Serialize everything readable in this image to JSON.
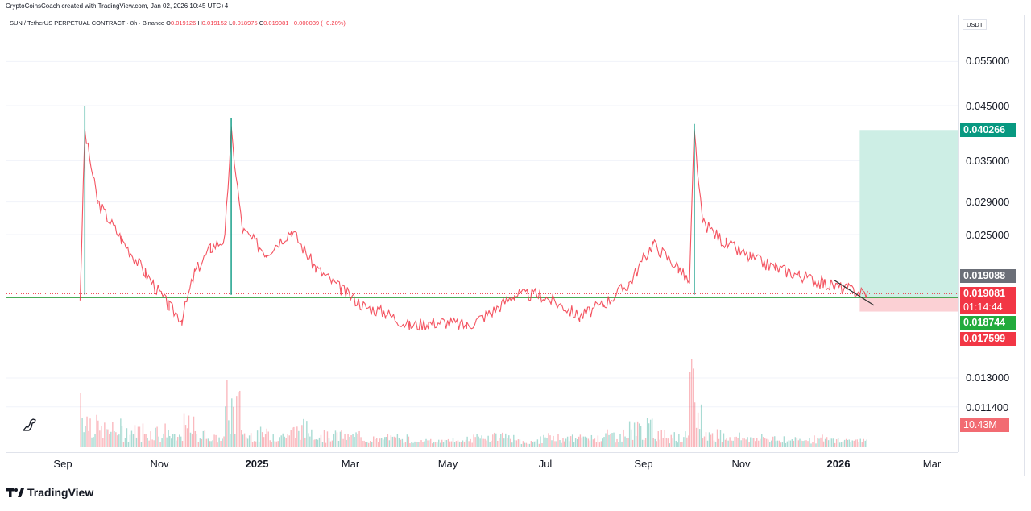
{
  "header": {
    "credit": "CryptoCoinsCoach created with TradingView.com, Jan 02, 2026 10:45 UTC+4"
  },
  "legend": {
    "symbol": "SUN / TetherUS PERPETUAL CONTRACT · 8h · Binance",
    "o_label": "O",
    "o": "0.019126",
    "h_label": "H",
    "h": "0.019152",
    "l_label": "L",
    "l": "0.018975",
    "c_label": "C",
    "c": "0.019081",
    "change": "−0.000039 (−0.20%)"
  },
  "price_axis": {
    "currency": "USDT",
    "ticks": [
      "0.055000",
      "0.045000",
      "0.035000",
      "0.029000",
      "0.025000",
      "0.013000",
      "0.011400"
    ]
  },
  "badges": {
    "target": "0.040266",
    "prev": "0.019088",
    "last": "0.019081",
    "countdown": "01:14:44",
    "entry": "0.018744",
    "stop": "0.017599",
    "volume": "10.43M"
  },
  "time_axis": {
    "labels": [
      "Sep",
      "Nov",
      "2025",
      "Mar",
      "May",
      "Jul",
      "Sep",
      "Nov",
      "2026",
      "Mar"
    ]
  },
  "branding": {
    "name": "TradingView"
  },
  "colors": {
    "up": "#089981",
    "down": "#f23645",
    "target_zone": "#cdeee5",
    "stop_zone": "#fbd0d4",
    "trend_line": "#333333",
    "level_line": "#2e9e3e"
  },
  "chart_data": {
    "type": "line",
    "title": "SUN / TetherUS PERPETUAL CONTRACT · 8h · Binance",
    "interval": "8h",
    "y_scale": "log",
    "currency": "USDT",
    "x": [
      "2024-08-25",
      "2024-08-28",
      "2024-09-05",
      "2024-09-20",
      "2024-10-05",
      "2024-10-20",
      "2024-10-28",
      "2024-11-05",
      "2024-11-15",
      "2024-11-24",
      "2024-11-28",
      "2024-12-05",
      "2024-12-20",
      "2025-01-05",
      "2025-01-20",
      "2025-02-05",
      "2025-02-20",
      "2025-03-05",
      "2025-03-20",
      "2025-04-01",
      "2025-04-10",
      "2025-04-25",
      "2025-05-10",
      "2025-05-25",
      "2025-06-10",
      "2025-06-25",
      "2025-07-05",
      "2025-07-20",
      "2025-08-05",
      "2025-08-20",
      "2025-09-05",
      "2025-09-12",
      "2025-09-15",
      "2025-09-20",
      "2025-10-05",
      "2025-10-20",
      "2025-11-05",
      "2025-11-20",
      "2025-12-05",
      "2025-12-20",
      "2026-01-02"
    ],
    "series": [
      {
        "values": [
          0.0187,
          0.04,
          0.029,
          0.0245,
          0.021,
          0.018,
          0.017,
          0.021,
          0.0235,
          0.0245,
          0.04,
          0.0255,
          0.023,
          0.0255,
          0.0215,
          0.0195,
          0.018,
          0.0175,
          0.0165,
          0.0167,
          0.0168,
          0.0165,
          0.0175,
          0.019,
          0.019,
          0.018,
          0.0172,
          0.0182,
          0.02,
          0.024,
          0.0215,
          0.02,
          0.04,
          0.0265,
          0.024,
          0.0225,
          0.0215,
          0.0208,
          0.02,
          0.0195,
          0.0191
        ]
      }
    ],
    "highs": {
      "2024-08-28": 0.0449,
      "2024-11-28": 0.0425,
      "2025-09-15": 0.0414
    },
    "annotations": {
      "long_position": {
        "entry": 0.018744,
        "target": 0.040266,
        "stop": 0.017599
      },
      "last_price": 0.019081,
      "previous_close": 0.019088,
      "volume": "10.43M"
    }
  }
}
